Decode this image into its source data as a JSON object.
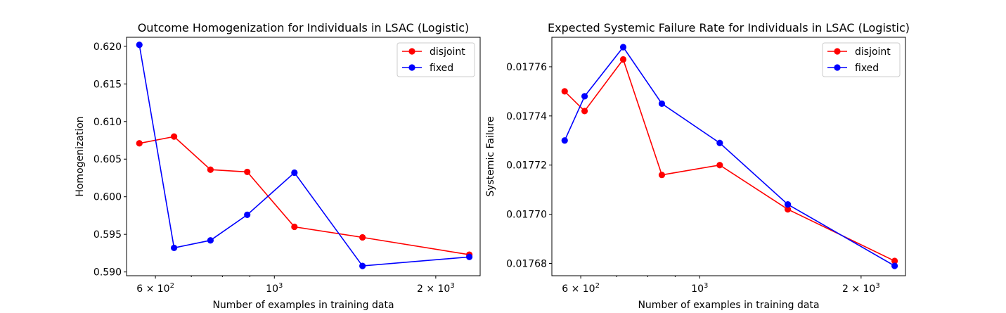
{
  "chart_data": [
    {
      "type": "line",
      "title": "Outcome Homogenization for Individuals in LSAC (Logistic)",
      "xlabel": "Number of examples in training data",
      "ylabel": "Homogenization",
      "x_scale": "log",
      "xlim": [
        530,
        2420
      ],
      "ylim": [
        0.5895,
        0.6212
      ],
      "x_ticks": [
        {
          "value": 600,
          "base": "6 × 10",
          "exp": "2"
        },
        {
          "value": 1000,
          "base": "10",
          "exp": "3"
        },
        {
          "value": 2000,
          "base": "2 × 10",
          "exp": "3"
        }
      ],
      "y_ticks": [
        {
          "value": 0.59,
          "label": "0.590"
        },
        {
          "value": 0.595,
          "label": "0.595"
        },
        {
          "value": 0.6,
          "label": "0.600"
        },
        {
          "value": 0.605,
          "label": "0.605"
        },
        {
          "value": 0.61,
          "label": "0.610"
        },
        {
          "value": 0.615,
          "label": "0.615"
        },
        {
          "value": 0.62,
          "label": "0.620"
        }
      ],
      "legend_position": "top-right",
      "grid": false,
      "series": [
        {
          "name": "disjoint",
          "color": "#ff0000",
          "x": [
            560,
            650,
            760,
            890,
            1090,
            1460,
            2310
          ],
          "y": [
            0.6071,
            0.608,
            0.6036,
            0.6033,
            0.596,
            0.5946,
            0.5923
          ]
        },
        {
          "name": "fixed",
          "color": "#0000ff",
          "x": [
            560,
            650,
            760,
            890,
            1090,
            1460,
            2310
          ],
          "y": [
            0.6202,
            0.5932,
            0.5942,
            0.5976,
            0.6032,
            0.5908,
            0.592
          ]
        }
      ]
    },
    {
      "type": "line",
      "title": "Expected Systemic Failure Rate for Individuals in LSAC (Logistic)",
      "xlabel": "Number of examples in training data",
      "ylabel": "Systemic Failure",
      "x_scale": "log",
      "xlim": [
        530,
        2420
      ],
      "ylim": [
        0.017675,
        0.017772
      ],
      "x_ticks": [
        {
          "value": 600,
          "base": "6 × 10",
          "exp": "2"
        },
        {
          "value": 1000,
          "base": "10",
          "exp": "3"
        },
        {
          "value": 2000,
          "base": "2 × 10",
          "exp": "3"
        }
      ],
      "y_ticks": [
        {
          "value": 0.01768,
          "label": "0.01768"
        },
        {
          "value": 0.0177,
          "label": "0.01770"
        },
        {
          "value": 0.01772,
          "label": "0.01772"
        },
        {
          "value": 0.01774,
          "label": "0.01774"
        },
        {
          "value": 0.01776,
          "label": "0.01776"
        }
      ],
      "legend_position": "top-right",
      "grid": false,
      "series": [
        {
          "name": "disjoint",
          "color": "#ff0000",
          "x": [
            560,
            610,
            720,
            850,
            1090,
            1460,
            2310
          ],
          "y": [
            0.01775,
            0.017742,
            0.017763,
            0.017716,
            0.01772,
            0.017702,
            0.017681
          ]
        },
        {
          "name": "fixed",
          "color": "#0000ff",
          "x": [
            560,
            610,
            720,
            850,
            1090,
            1460,
            2310
          ],
          "y": [
            0.01773,
            0.017748,
            0.017768,
            0.017745,
            0.017729,
            0.017704,
            0.017679
          ]
        }
      ]
    }
  ]
}
